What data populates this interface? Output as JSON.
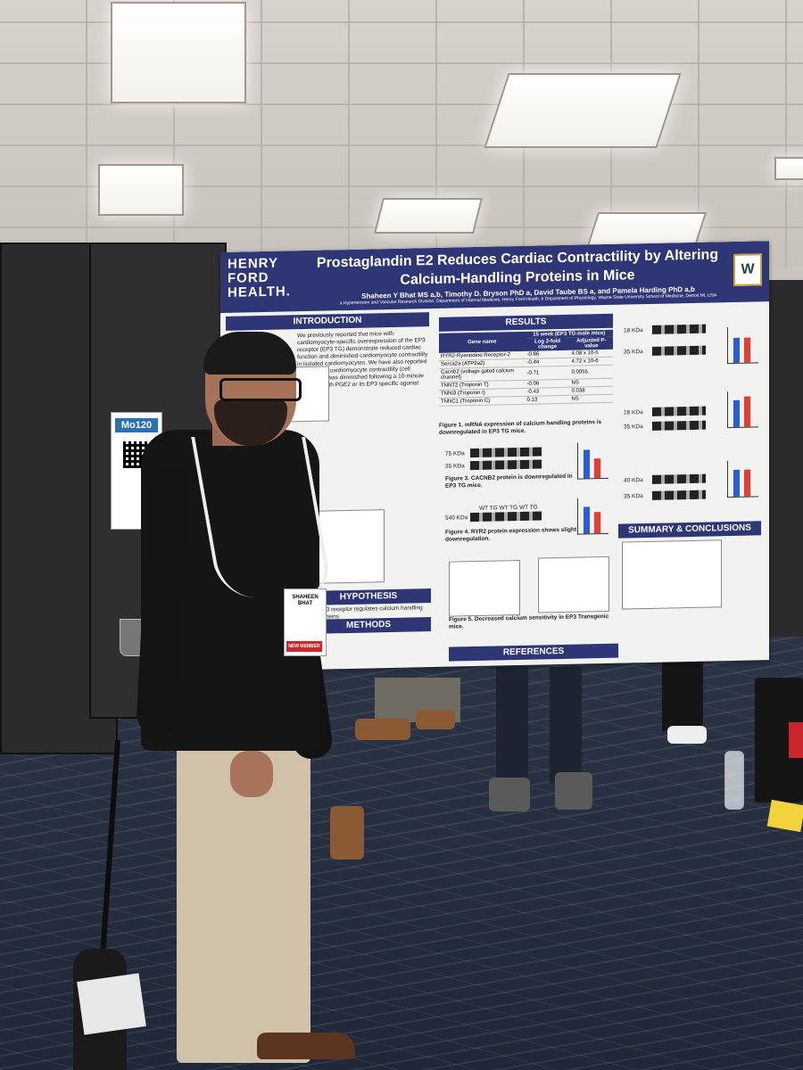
{
  "scene": {
    "booth_sign": {
      "code": "Mo120"
    },
    "badge": {
      "name_line1": "SHAHEEN",
      "name_line2": "BHAT",
      "ribbon": "NEW MEMBER"
    }
  },
  "poster": {
    "logo_lines": [
      "HENRY",
      "FORD",
      "HEALTH."
    ],
    "title": "Prostaglandin E2 Reduces Cardiac Contractility by Altering Calcium-Handling Proteins in Mice",
    "authors": "Shaheen Y Bhat MS a,b, Timothy D. Bryson PhD a, David Taube BS a, and Pamela Harding PhD a,b",
    "affiliations": "a Hypertension and Vascular Research Division, Department of Internal Medicine, Henry Ford Health, b Department of Physiology, Wayne State University School of Medicine, Detroit MI, USA",
    "sections": {
      "introduction": "INTRODUCTION",
      "hypothesis": "HYPOTHESIS",
      "methods": "METHODS",
      "results": "RESULTS",
      "summary": "SUMMARY & CONCLUSIONS",
      "references": "REFERENCES"
    },
    "intro_text": "We previously reported that mice with cardiomyocyte-specific overexpression of the EP3 receptor (EP3 TG) demonstrate reduced cardiac function and diminished cardiomyocyte contractility in isolated cardiomyocytes. We have also reported that isolated cardiomyocyte contractility (cell shortening) was diminished following a 10-minute treatment with PGE2 or its EP3 specific agonist sulprostone.",
    "hypothesis_text": "EP3 receptor regulates calcium handling proteins",
    "table": {
      "header_col1": "Gene name",
      "header_group": "15 week (EP3 TG-male mice)",
      "header_col2": "Log 2-fold change",
      "header_col3": "Adjusted P-value",
      "rows": [
        [
          "RYR2-Ryanodine Receptor-2",
          "-0.86",
          "4.08 x 10-5"
        ],
        [
          "Serca2a (ATP2a2)",
          "-0.44",
          "4.72 x 10-6"
        ],
        [
          "Cacnb2 (voltage gated calcium channel)",
          "-0.71",
          "0.0055"
        ],
        [
          "TNNT2 (Troponin T)",
          "-0.06",
          "NS"
        ],
        [
          "TNNI3 (Troponin I)",
          "-0.43",
          "0.038"
        ],
        [
          "TNNC1 (Troponin C)",
          "0.13",
          "NS"
        ]
      ]
    },
    "blot_labels": [
      "75 KDa",
      "35 KDa",
      "540 KDa",
      "18 KDa",
      "35 KDa",
      "18 KDa",
      "35 KDa",
      "40 KDa",
      "35 KDa"
    ],
    "lane_labels": "WT TG WT TG WT TG",
    "fig_caption_1": "Figure 1. mRNA expression of calcium handling proteins is downregulated in EP3 TG mice.",
    "fig_caption_3": "Figure 3. CACNB2 protein is downregulated in EP3 TG mice.",
    "fig_caption_4": "Figure 4. RYR2 protein expression shows slight downregulation.",
    "fig_caption_5": "Figure 5. Decreased calcium sensitivity in EP3 Transgenic mice."
  }
}
